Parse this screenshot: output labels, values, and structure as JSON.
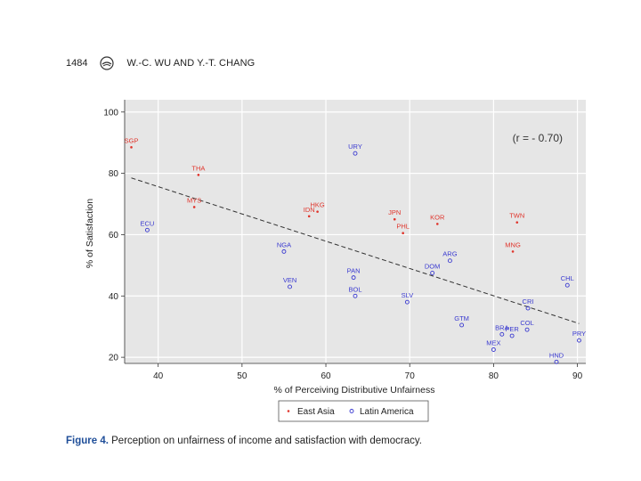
{
  "header": {
    "page_number": "1484",
    "authors": "W.-C. WU AND Y.-T. CHANG"
  },
  "caption": {
    "label": "Figure 4.",
    "text": " Perception on unfairness of income and satisfaction with democracy."
  },
  "colors": {
    "east_asia": "#e0342b",
    "latin_america": "#3a3ad0",
    "plot_bg": "#e6e6e6",
    "grid": "#ffffff",
    "fit_line": "#333333"
  },
  "chart_data": {
    "type": "scatter",
    "title": "",
    "xlabel": "% of Perceiving Distributive Unfairness",
    "ylabel": "% of Satisfaction",
    "xlim": [
      36,
      91
    ],
    "ylim": [
      18,
      104
    ],
    "xticks": [
      40,
      50,
      60,
      70,
      80,
      90
    ],
    "yticks": [
      20,
      40,
      60,
      80,
      100
    ],
    "grid": true,
    "annotation": "(r = - 0.70)",
    "legend_position": "bottom",
    "fit_line": {
      "x": [
        36.8,
        90.2
      ],
      "y": [
        78.5,
        31
      ]
    },
    "series": [
      {
        "name": "East Asia",
        "marker": "dot",
        "points": [
          {
            "label": "SGP",
            "x": 36.8,
            "y": 88.5
          },
          {
            "label": "THA",
            "x": 44.8,
            "y": 79.5
          },
          {
            "label": "MYS",
            "x": 44.3,
            "y": 69
          },
          {
            "label": "HKG",
            "x": 59,
            "y": 67.5
          },
          {
            "label": "IDN",
            "x": 58,
            "y": 66
          },
          {
            "label": "JPN",
            "x": 68.2,
            "y": 65
          },
          {
            "label": "PHL",
            "x": 69.2,
            "y": 60.5
          },
          {
            "label": "KOR",
            "x": 73.3,
            "y": 63.5
          },
          {
            "label": "TWN",
            "x": 82.8,
            "y": 64
          },
          {
            "label": "MNG",
            "x": 82.3,
            "y": 54.5
          }
        ]
      },
      {
        "name": "Latin America",
        "marker": "circle",
        "points": [
          {
            "label": "URY",
            "x": 63.5,
            "y": 86.5
          },
          {
            "label": "ECU",
            "x": 38.7,
            "y": 61.5
          },
          {
            "label": "NGA",
            "x": 55,
            "y": 54.5
          },
          {
            "label": "PAN",
            "x": 63.3,
            "y": 46
          },
          {
            "label": "VEN",
            "x": 55.7,
            "y": 43
          },
          {
            "label": "BOL",
            "x": 63.5,
            "y": 40
          },
          {
            "label": "SLV",
            "x": 69.7,
            "y": 38
          },
          {
            "label": "DOM",
            "x": 72.7,
            "y": 47.5
          },
          {
            "label": "ARG",
            "x": 74.8,
            "y": 51.5
          },
          {
            "label": "GTM",
            "x": 76.2,
            "y": 30.5
          },
          {
            "label": "CRI",
            "x": 84.1,
            "y": 36
          },
          {
            "label": "CHL",
            "x": 88.8,
            "y": 43.5
          },
          {
            "label": "COL",
            "x": 84,
            "y": 29
          },
          {
            "label": "BRA",
            "x": 81,
            "y": 27.5
          },
          {
            "label": "PER",
            "x": 82.2,
            "y": 27
          },
          {
            "label": "MEX",
            "x": 80,
            "y": 22.5
          },
          {
            "label": "PRY",
            "x": 90.2,
            "y": 25.5
          },
          {
            "label": "HND",
            "x": 87.5,
            "y": 18.5
          }
        ]
      }
    ]
  }
}
